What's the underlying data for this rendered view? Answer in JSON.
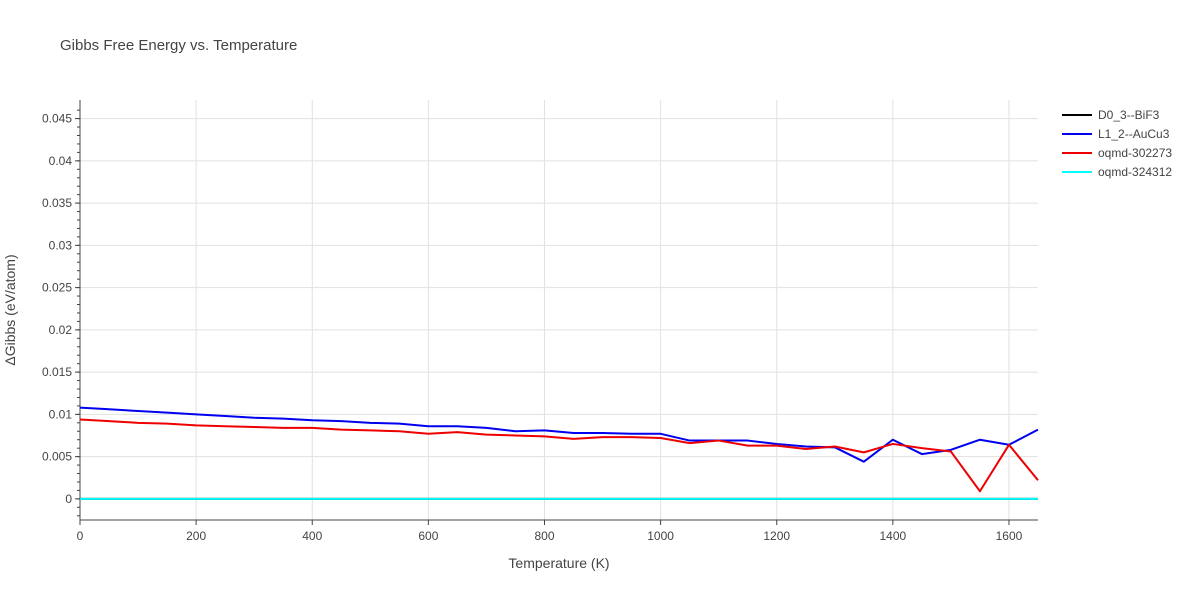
{
  "chart_data": {
    "type": "line",
    "title": "Gibbs Free Energy vs. Temperature",
    "xlabel": "Temperature (K)",
    "ylabel": "ΔGibbs (eV/atom)",
    "xlim": [
      0,
      1650
    ],
    "ylim": [
      -0.0025,
      0.0472
    ],
    "xticks": [
      0,
      200,
      400,
      600,
      800,
      1000,
      1200,
      1400,
      1600
    ],
    "xtick_labels": [
      "0",
      "200",
      "400",
      "600",
      "800",
      "1000",
      "1200",
      "1400",
      "1600"
    ],
    "yticks": [
      0,
      0.005,
      0.01,
      0.015,
      0.02,
      0.025,
      0.03,
      0.035,
      0.04,
      0.045
    ],
    "ytick_labels": [
      "0",
      "0.005",
      "0.01",
      "0.015",
      "0.02",
      "0.025",
      "0.03",
      "0.035",
      "0.04",
      "0.045"
    ],
    "grid": true,
    "legend_position": "top-right",
    "series": [
      {
        "name": "D0_3--BiF3",
        "color": "#000000",
        "x": [
          0,
          1650
        ],
        "y": [
          0,
          0
        ]
      },
      {
        "name": "L1_2--AuCu3",
        "color": "#0000ee",
        "x": [
          0,
          50,
          100,
          150,
          200,
          250,
          300,
          350,
          400,
          450,
          500,
          550,
          600,
          650,
          700,
          750,
          800,
          850,
          900,
          950,
          1000,
          1050,
          1100,
          1150,
          1200,
          1250,
          1300,
          1350,
          1400,
          1450,
          1500,
          1550,
          1600,
          1650
        ],
        "y": [
          0.0108,
          0.0106,
          0.0104,
          0.0102,
          0.01,
          0.0098,
          0.0096,
          0.0095,
          0.0093,
          0.0092,
          0.009,
          0.0089,
          0.0086,
          0.0086,
          0.0084,
          0.008,
          0.0081,
          0.0078,
          0.0078,
          0.0077,
          0.0077,
          0.0069,
          0.0069,
          0.0069,
          0.0065,
          0.0062,
          0.0061,
          0.0044,
          0.007,
          0.0053,
          0.0058,
          0.007,
          0.0064,
          0.0082
        ]
      },
      {
        "name": "oqmd-302273",
        "color": "#ee0000",
        "x": [
          0,
          50,
          100,
          150,
          200,
          250,
          300,
          350,
          400,
          450,
          500,
          550,
          600,
          650,
          700,
          750,
          800,
          850,
          900,
          950,
          1000,
          1050,
          1100,
          1150,
          1200,
          1250,
          1300,
          1350,
          1400,
          1450,
          1500,
          1550,
          1600,
          1650
        ],
        "y": [
          0.0094,
          0.0092,
          0.009,
          0.0089,
          0.0087,
          0.0086,
          0.0085,
          0.0084,
          0.0084,
          0.0082,
          0.0081,
          0.008,
          0.0077,
          0.0079,
          0.0076,
          0.0075,
          0.0074,
          0.0071,
          0.0073,
          0.0073,
          0.0072,
          0.0066,
          0.0069,
          0.0063,
          0.0063,
          0.0059,
          0.0062,
          0.0055,
          0.0065,
          0.006,
          0.0056,
          0.0009,
          0.0064,
          0.0022
        ]
      },
      {
        "name": "oqmd-324312",
        "color": "#00ffff",
        "x": [
          0,
          1650
        ],
        "y": [
          0,
          0
        ]
      }
    ]
  }
}
